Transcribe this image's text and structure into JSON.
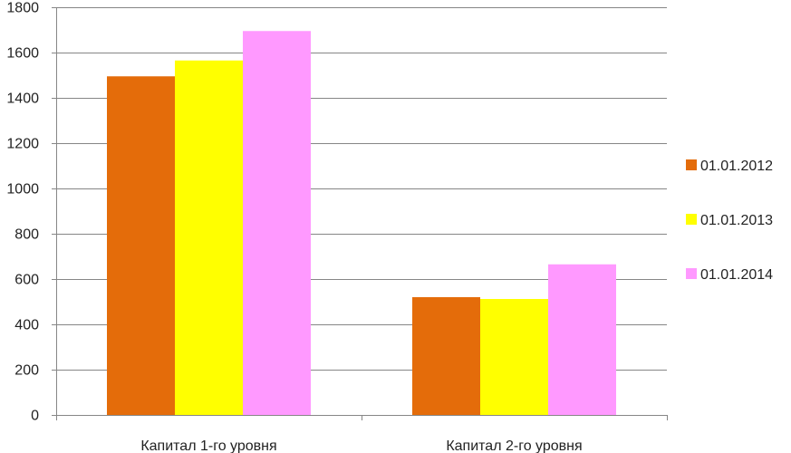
{
  "chart_data": {
    "type": "bar",
    "categories": [
      "Капитал 1-го уровня",
      "Капитал 2-го уровня"
    ],
    "series": [
      {
        "name": "01.01.2012",
        "values": [
          1495,
          520
        ],
        "color": "#E46C0A"
      },
      {
        "name": "01.01.2013",
        "values": [
          1565,
          512
        ],
        "color": "#FFFF00"
      },
      {
        "name": "01.01.2014",
        "values": [
          1695,
          665
        ],
        "color": "#FF99FF"
      }
    ],
    "ylim": [
      0,
      1800
    ],
    "yticks": [
      0,
      200,
      400,
      600,
      800,
      1000,
      1200,
      1400,
      1600,
      1800
    ],
    "grid": true,
    "legend_position": "right",
    "title": "",
    "xlabel": "",
    "ylabel": ""
  }
}
